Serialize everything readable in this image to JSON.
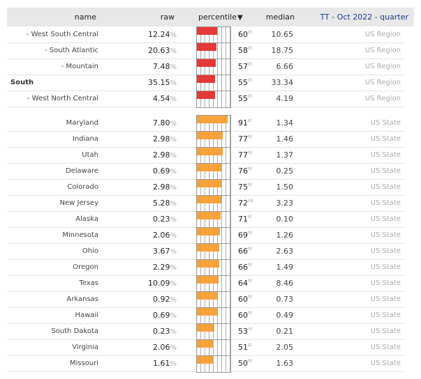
{
  "header": {
    "name": "name",
    "raw": "raw",
    "percentile": "percentile",
    "sort_arrow": "▼",
    "median": "median",
    "period": "TT - Oct 2022 - quarter"
  },
  "colors": {
    "region_bar": "#e53935",
    "state_bar": "#f6a23b"
  },
  "regions": [
    {
      "name": "- West South Central",
      "raw": "12.24",
      "percentile": 60,
      "suffix": "th",
      "median": "10.65",
      "type": "US Region",
      "bold": false
    },
    {
      "name": "- South Atlantic",
      "raw": "20.63",
      "percentile": 58,
      "suffix": "th",
      "median": "18.75",
      "type": "US Region",
      "bold": false
    },
    {
      "name": "- Mountain",
      "raw": "7.48",
      "percentile": 57,
      "suffix": "th",
      "median": "6.66",
      "type": "US Region",
      "bold": false
    },
    {
      "name": "South",
      "raw": "35.15",
      "percentile": 55,
      "suffix": "th",
      "median": "33.34",
      "type": "US Region",
      "bold": true
    },
    {
      "name": "- West North Central",
      "raw": "4.54",
      "percentile": 55,
      "suffix": "th",
      "median": "4.19",
      "type": "US Region",
      "bold": false
    }
  ],
  "states": [
    {
      "name": "Maryland",
      "raw": "7.80",
      "percentile": 91,
      "suffix": "st",
      "median": "1.34",
      "type": "US State"
    },
    {
      "name": "Indiana",
      "raw": "2.98",
      "percentile": 77,
      "suffix": "th",
      "median": "1.46",
      "type": "US State"
    },
    {
      "name": "Utah",
      "raw": "2.98",
      "percentile": 77,
      "suffix": "th",
      "median": "1.37",
      "type": "US State"
    },
    {
      "name": "Delaware",
      "raw": "0.69",
      "percentile": 76,
      "suffix": "th",
      "median": "0.25",
      "type": "US State"
    },
    {
      "name": "Colorado",
      "raw": "2.98",
      "percentile": 75,
      "suffix": "th",
      "median": "1.50",
      "type": "US State"
    },
    {
      "name": "New Jersey",
      "raw": "5.28",
      "percentile": 72,
      "suffix": "nd",
      "median": "3.23",
      "type": "US State"
    },
    {
      "name": "Alaska",
      "raw": "0.23",
      "percentile": 71,
      "suffix": "st",
      "median": "0.10",
      "type": "US State"
    },
    {
      "name": "Minnesota",
      "raw": "2.06",
      "percentile": 69,
      "suffix": "th",
      "median": "1.26",
      "type": "US State"
    },
    {
      "name": "Ohio",
      "raw": "3.67",
      "percentile": 66,
      "suffix": "th",
      "median": "2.63",
      "type": "US State"
    },
    {
      "name": "Oregon",
      "raw": "2.29",
      "percentile": 66,
      "suffix": "th",
      "median": "1.49",
      "type": "US State"
    },
    {
      "name": "Texas",
      "raw": "10.09",
      "percentile": 64,
      "suffix": "th",
      "median": "8.46",
      "type": "US State"
    },
    {
      "name": "Arkansas",
      "raw": "0.92",
      "percentile": 60,
      "suffix": "th",
      "median": "0.73",
      "type": "US State"
    },
    {
      "name": "Hawaii",
      "raw": "0.69",
      "percentile": 60,
      "suffix": "th",
      "median": "0.49",
      "type": "US State"
    },
    {
      "name": "South Dakota",
      "raw": "0.23",
      "percentile": 53,
      "suffix": "rd",
      "median": "0.21",
      "type": "US State"
    },
    {
      "name": "Virginia",
      "raw": "2.06",
      "percentile": 51,
      "suffix": "st",
      "median": "2.05",
      "type": "US State"
    },
    {
      "name": "Missouri",
      "raw": "1.61",
      "percentile": 50,
      "suffix": "th",
      "median": "1.63",
      "type": "US State"
    }
  ],
  "percent_sign": "%"
}
